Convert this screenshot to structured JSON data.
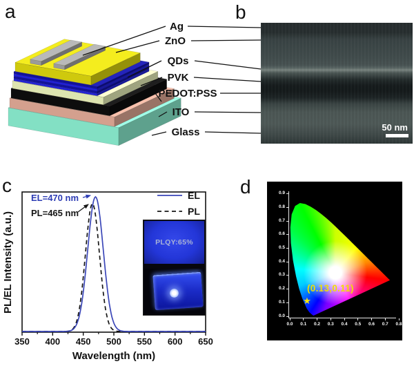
{
  "panels": {
    "a": "a",
    "b": "b",
    "c": "c",
    "d": "d"
  },
  "panel_a": {
    "layers": [
      {
        "label": "Ag",
        "color": "#9a9a9a"
      },
      {
        "label": "ZnO",
        "color": "#cfc90d"
      },
      {
        "label": "QDs",
        "color": "#2121d6"
      },
      {
        "label": "PVK",
        "color": "#dde4b0"
      },
      {
        "label": "PEDOT:PSS",
        "color": "#0d0d0d"
      },
      {
        "label": "ITO",
        "color": "#d4a08e"
      },
      {
        "label": "Glass",
        "color": "#83e0c4"
      }
    ]
  },
  "panel_b": {
    "scale_bar_label": "50 nm"
  },
  "chart_data": [
    {
      "panel": "c",
      "type": "line",
      "xlabel": "Wavelength (nm)",
      "ylabel": "PL/EL Intensity (a.u.)",
      "xlim": [
        350,
        650
      ],
      "xticks": [
        "350",
        "400",
        "450",
        "500",
        "550",
        "600",
        "650"
      ],
      "grid": false,
      "legend_position": "top-right",
      "series": [
        {
          "name": "EL",
          "line_style": "solid",
          "color": "#3a46b8",
          "peak_nm": 470,
          "fwhm_nm": 30,
          "amplitude": 1.0
        },
        {
          "name": "PL",
          "line_style": "dashed",
          "color": "#151515",
          "peak_nm": 465,
          "fwhm_nm": 27,
          "amplitude": 0.95
        }
      ],
      "annotations": [
        {
          "text": "EL=470 nm",
          "color": "#2d3cb4"
        },
        {
          "text": "PL=465 nm",
          "color": "#151515"
        }
      ],
      "inset_label": "PLQY:65%"
    },
    {
      "panel": "d",
      "type": "scatter",
      "subtype": "CIE 1931 chromaticity diagram",
      "xlim": [
        0.0,
        0.8
      ],
      "ylim": [
        0.0,
        0.9
      ],
      "xticks": [
        "0.0",
        "0.1",
        "0.2",
        "0.3",
        "0.4",
        "0.5",
        "0.6",
        "0.7",
        "0.8"
      ],
      "yticks": [
        "0.0",
        "0.1",
        "0.2",
        "0.3",
        "0.4",
        "0.5",
        "0.6",
        "0.7",
        "0.8",
        "0.9"
      ],
      "points": [
        {
          "x": 0.13,
          "y": 0.11,
          "marker": "star",
          "color": "#ffe600"
        }
      ],
      "annotation": {
        "text": "(0.13,0.11)",
        "color": "#efdf00"
      }
    }
  ]
}
